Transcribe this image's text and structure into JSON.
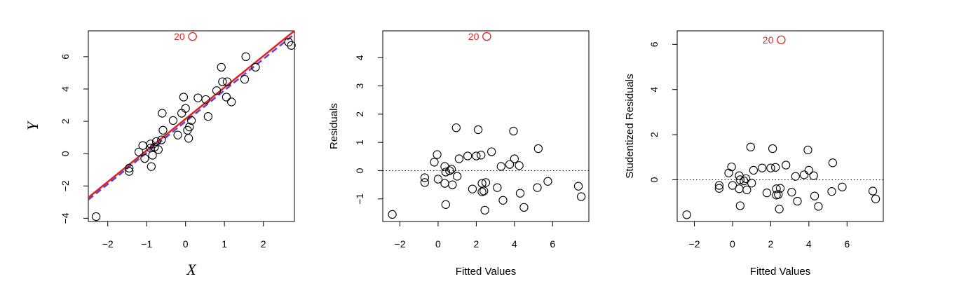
{
  "chart_data": [
    {
      "type": "scatter",
      "xlabel": "X",
      "ylabel": "Y",
      "xlim": [
        -2.5,
        2.8
      ],
      "ylim": [
        -4.2,
        7.6
      ],
      "xticks": [
        -2,
        -1,
        0,
        1,
        2
      ],
      "yticks": [
        -4,
        -2,
        0,
        2,
        4,
        6
      ],
      "xtick_labels": [
        "−2",
        "−1",
        "0",
        "1",
        "2"
      ],
      "ytick_labels": [
        "−4",
        "−2",
        "0",
        "2",
        "4",
        "6"
      ],
      "outlier": {
        "label": "20",
        "x": 0.18,
        "y": 7.25,
        "color": "#e0241f"
      },
      "fit_lines": [
        {
          "color": "#e0241f",
          "style": "solid",
          "x": [
            -2.5,
            2.8
          ],
          "y": [
            -2.72,
            7.6
          ]
        },
        {
          "color": "#6a3fd8",
          "style": "dashed",
          "x": [
            -2.5,
            2.8
          ],
          "y": [
            -2.85,
            7.4
          ]
        }
      ],
      "points": [
        {
          "x": -2.3,
          "y": -3.9
        },
        {
          "x": -1.45,
          "y": -1.1
        },
        {
          "x": -1.45,
          "y": -0.9
        },
        {
          "x": -1.2,
          "y": 0.1
        },
        {
          "x": -1.1,
          "y": 0.5
        },
        {
          "x": -1.05,
          "y": -0.3
        },
        {
          "x": -0.9,
          "y": 0.6
        },
        {
          "x": -0.9,
          "y": 0.35
        },
        {
          "x": -0.88,
          "y": -0.8
        },
        {
          "x": -0.85,
          "y": -0.1
        },
        {
          "x": -0.8,
          "y": 0.4
        },
        {
          "x": -0.75,
          "y": 0.75
        },
        {
          "x": -0.7,
          "y": 0.25
        },
        {
          "x": -0.62,
          "y": 0.85
        },
        {
          "x": -0.6,
          "y": 2.5
        },
        {
          "x": -0.58,
          "y": 1.45
        },
        {
          "x": -0.32,
          "y": 2.05
        },
        {
          "x": -0.2,
          "y": 1.15
        },
        {
          "x": -0.1,
          "y": 2.5
        },
        {
          "x": -0.05,
          "y": 3.5
        },
        {
          "x": 0.0,
          "y": 2.8
        },
        {
          "x": 0.05,
          "y": 1.45
        },
        {
          "x": 0.08,
          "y": 0.95
        },
        {
          "x": 0.1,
          "y": 1.65
        },
        {
          "x": 0.15,
          "y": 2.05
        },
        {
          "x": 0.32,
          "y": 3.45
        },
        {
          "x": 0.52,
          "y": 3.35
        },
        {
          "x": 0.58,
          "y": 2.3
        },
        {
          "x": 0.8,
          "y": 3.9
        },
        {
          "x": 0.92,
          "y": 5.35
        },
        {
          "x": 0.95,
          "y": 4.45
        },
        {
          "x": 1.05,
          "y": 3.5
        },
        {
          "x": 1.07,
          "y": 4.45
        },
        {
          "x": 1.18,
          "y": 3.2
        },
        {
          "x": 1.52,
          "y": 4.6
        },
        {
          "x": 1.55,
          "y": 6.0
        },
        {
          "x": 1.8,
          "y": 5.35
        },
        {
          "x": 2.65,
          "y": 6.9
        },
        {
          "x": 2.72,
          "y": 6.7
        }
      ]
    },
    {
      "type": "scatter",
      "xlabel": "Fitted Values",
      "ylabel": "Residuals",
      "xlim": [
        -2.9,
        7.9
      ],
      "ylim": [
        -1.8,
        4.95
      ],
      "xticks": [
        -2,
        0,
        2,
        4,
        6
      ],
      "yticks": [
        -1,
        0,
        1,
        2,
        3,
        4
      ],
      "xtick_labels": [
        "−2",
        "0",
        "2",
        "4",
        "6"
      ],
      "ytick_labels": [
        "−1",
        "0",
        "1",
        "2",
        "3",
        "4"
      ],
      "reference_line": {
        "y": 0,
        "style": "dotted"
      },
      "outlier": {
        "label": "20",
        "x": 2.55,
        "y": 4.75,
        "color": "#e0241f"
      },
      "points": [
        {
          "x": -2.4,
          "y": -1.55
        },
        {
          "x": -0.7,
          "y": -0.25
        },
        {
          "x": -0.7,
          "y": -0.42
        },
        {
          "x": -0.2,
          "y": 0.3
        },
        {
          "x": -0.05,
          "y": 0.57
        },
        {
          "x": 0.0,
          "y": -0.3
        },
        {
          "x": 0.35,
          "y": 0.15
        },
        {
          "x": 0.35,
          "y": -0.45
        },
        {
          "x": 0.4,
          "y": -1.2
        },
        {
          "x": 0.4,
          "y": -0.05
        },
        {
          "x": 0.6,
          "y": 0.0
        },
        {
          "x": 0.7,
          "y": 0.05
        },
        {
          "x": 0.75,
          "y": -0.5
        },
        {
          "x": 0.95,
          "y": 1.52
        },
        {
          "x": 1.0,
          "y": -0.2
        },
        {
          "x": 1.1,
          "y": 0.42
        },
        {
          "x": 1.55,
          "y": 0.52
        },
        {
          "x": 1.8,
          "y": -0.65
        },
        {
          "x": 2.0,
          "y": 0.52
        },
        {
          "x": 2.1,
          "y": 1.45
        },
        {
          "x": 2.25,
          "y": 0.55
        },
        {
          "x": 2.3,
          "y": -0.45
        },
        {
          "x": 2.3,
          "y": -0.75
        },
        {
          "x": 2.4,
          "y": -0.72
        },
        {
          "x": 2.45,
          "y": -1.4
        },
        {
          "x": 2.5,
          "y": -0.42
        },
        {
          "x": 2.8,
          "y": 0.67
        },
        {
          "x": 3.1,
          "y": -0.6
        },
        {
          "x": 3.3,
          "y": 0.15
        },
        {
          "x": 3.4,
          "y": -1.05
        },
        {
          "x": 3.75,
          "y": 0.22
        },
        {
          "x": 3.95,
          "y": 1.4
        },
        {
          "x": 4.0,
          "y": 0.42
        },
        {
          "x": 4.25,
          "y": 0.18
        },
        {
          "x": 4.3,
          "y": -0.8
        },
        {
          "x": 4.5,
          "y": -1.3
        },
        {
          "x": 5.2,
          "y": -0.6
        },
        {
          "x": 5.25,
          "y": 0.78
        },
        {
          "x": 5.75,
          "y": -0.38
        },
        {
          "x": 7.35,
          "y": -0.55
        },
        {
          "x": 7.5,
          "y": -0.92
        }
      ]
    },
    {
      "type": "scatter",
      "xlabel": "Fitted Values",
      "ylabel": "Studentized Residuals",
      "xlim": [
        -2.9,
        7.9
      ],
      "ylim": [
        -1.85,
        6.6
      ],
      "xticks": [
        -2,
        0,
        2,
        4,
        6
      ],
      "yticks": [
        0,
        2,
        4,
        6
      ],
      "xtick_labels": [
        "−2",
        "0",
        "2",
        "4",
        "6"
      ],
      "ytick_labels": [
        "0",
        "2",
        "4",
        "6"
      ],
      "reference_line": {
        "y": 0,
        "style": "dotted"
      },
      "outlier": {
        "label": "20",
        "x": 2.55,
        "y": 6.2,
        "color": "#e0241f"
      },
      "points": [
        {
          "x": -2.4,
          "y": -1.55
        },
        {
          "x": -0.7,
          "y": -0.25
        },
        {
          "x": -0.7,
          "y": -0.38
        },
        {
          "x": -0.2,
          "y": 0.3
        },
        {
          "x": -0.05,
          "y": 0.57
        },
        {
          "x": 0.0,
          "y": -0.25
        },
        {
          "x": 0.35,
          "y": 0.18
        },
        {
          "x": 0.35,
          "y": -0.4
        },
        {
          "x": 0.4,
          "y": -1.15
        },
        {
          "x": 0.4,
          "y": 0.0
        },
        {
          "x": 0.6,
          "y": -0.05
        },
        {
          "x": 0.7,
          "y": 0.05
        },
        {
          "x": 0.75,
          "y": -0.45
        },
        {
          "x": 0.95,
          "y": 1.45
        },
        {
          "x": 1.0,
          "y": -0.15
        },
        {
          "x": 1.1,
          "y": 0.42
        },
        {
          "x": 1.55,
          "y": 0.52
        },
        {
          "x": 1.8,
          "y": -0.58
        },
        {
          "x": 2.0,
          "y": 0.52
        },
        {
          "x": 2.1,
          "y": 1.38
        },
        {
          "x": 2.25,
          "y": 0.55
        },
        {
          "x": 2.3,
          "y": -0.4
        },
        {
          "x": 2.3,
          "y": -0.68
        },
        {
          "x": 2.4,
          "y": -0.65
        },
        {
          "x": 2.45,
          "y": -1.3
        },
        {
          "x": 2.5,
          "y": -0.38
        },
        {
          "x": 2.8,
          "y": 0.65
        },
        {
          "x": 3.1,
          "y": -0.55
        },
        {
          "x": 3.3,
          "y": 0.15
        },
        {
          "x": 3.4,
          "y": -0.95
        },
        {
          "x": 3.75,
          "y": 0.22
        },
        {
          "x": 3.95,
          "y": 1.32
        },
        {
          "x": 4.0,
          "y": 0.42
        },
        {
          "x": 4.25,
          "y": 0.18
        },
        {
          "x": 4.3,
          "y": -0.72
        },
        {
          "x": 4.5,
          "y": -1.18
        },
        {
          "x": 5.2,
          "y": -0.52
        },
        {
          "x": 5.25,
          "y": 0.75
        },
        {
          "x": 5.75,
          "y": -0.32
        },
        {
          "x": 7.35,
          "y": -0.5
        },
        {
          "x": 7.5,
          "y": -0.85
        }
      ]
    }
  ]
}
